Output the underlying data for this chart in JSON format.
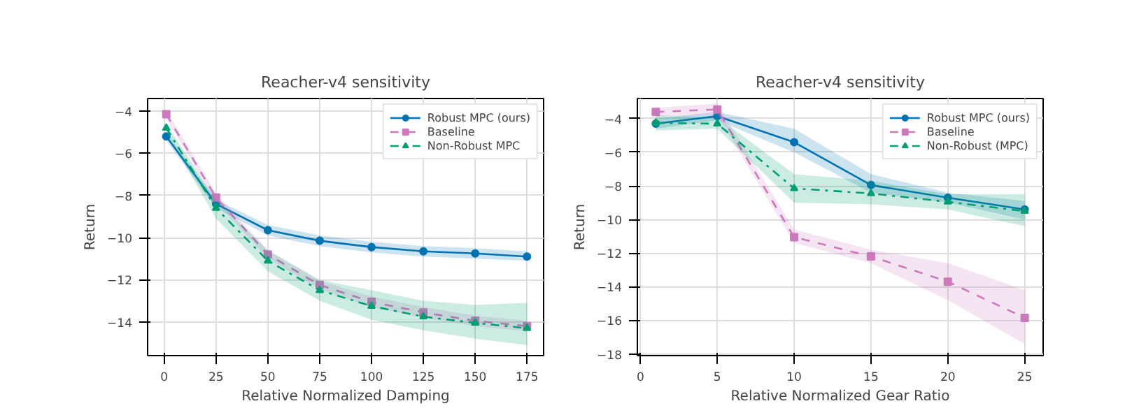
{
  "chart_data": [
    {
      "type": "line",
      "title": "Reacher-v4 sensitivity",
      "xlabel": "Relative Normalized Damping",
      "ylabel": "Return",
      "x": [
        1,
        25,
        50,
        75,
        100,
        125,
        150,
        175
      ],
      "xlim": [
        -8,
        183
      ],
      "ylim": [
        -15.6,
        -3.4
      ],
      "xticks": [
        0,
        25,
        50,
        75,
        100,
        125,
        150,
        175
      ],
      "yticks": [
        -14,
        -12,
        -10,
        -8,
        -6,
        -4
      ],
      "grid": true,
      "legend": "top right",
      "series": [
        {
          "name": "Robust MPC (ours)",
          "color": "#0173b2",
          "marker": "circle",
          "line_style": "solid",
          "values": [
            -5.2,
            -8.4,
            -9.65,
            -10.15,
            -10.45,
            -10.65,
            -10.75,
            -10.9
          ],
          "lower": [
            -5.4,
            -8.6,
            -9.9,
            -10.4,
            -10.7,
            -10.9,
            -11.0,
            -11.1
          ],
          "upper": [
            -5.0,
            -8.2,
            -9.4,
            -9.9,
            -10.2,
            -10.4,
            -10.5,
            -10.65
          ]
        },
        {
          "name": "Baseline",
          "color": "#cc78bc",
          "marker": "square",
          "line_style": "dashed",
          "values": [
            -4.15,
            -8.1,
            -10.8,
            -12.25,
            -13.05,
            -13.55,
            -13.95,
            -14.2
          ],
          "lower": [
            -4.35,
            -8.3,
            -11.0,
            -12.45,
            -13.3,
            -13.8,
            -14.2,
            -14.45
          ],
          "upper": [
            -3.95,
            -7.9,
            -10.6,
            -12.05,
            -12.8,
            -13.3,
            -13.7,
            -13.95
          ]
        },
        {
          "name": "Non-Robust MPC",
          "color": "#029e73",
          "marker": "triangle",
          "line_style": "dashdot",
          "values": [
            -4.8,
            -8.6,
            -11.1,
            -12.5,
            -13.25,
            -13.75,
            -14.05,
            -14.3
          ],
          "lower": [
            -5.0,
            -9.1,
            -11.6,
            -13.0,
            -13.9,
            -14.4,
            -14.8,
            -15.1
          ],
          "upper": [
            -4.6,
            -8.2,
            -10.6,
            -12.0,
            -12.5,
            -13.0,
            -13.2,
            -13.1
          ]
        }
      ]
    },
    {
      "type": "line",
      "title": "Reacher-v4 sensitivity",
      "xlabel": "Relative Normalized Gear Ratio",
      "ylabel": "Return",
      "x": [
        1,
        5,
        10,
        15,
        20,
        25
      ],
      "xlim": [
        -0.2,
        26.2
      ],
      "ylim": [
        -18.1,
        -2.8
      ],
      "xticks": [
        0,
        5,
        10,
        15,
        20,
        25
      ],
      "yticks": [
        -18,
        -16,
        -14,
        -12,
        -10,
        -8,
        -6,
        -4
      ],
      "grid": true,
      "legend": "top right",
      "series": [
        {
          "name": "Robust MPC (ours)",
          "color": "#0173b2",
          "marker": "circle",
          "line_style": "solid",
          "values": [
            -4.3,
            -3.85,
            -5.4,
            -7.95,
            -8.7,
            -9.4
          ],
          "lower": [
            -4.6,
            -4.1,
            -6.0,
            -8.4,
            -9.0,
            -10.0
          ],
          "upper": [
            -4.0,
            -3.6,
            -4.6,
            -7.3,
            -8.4,
            -8.9
          ]
        },
        {
          "name": "Baseline",
          "color": "#cc78bc",
          "marker": "square",
          "line_style": "dashed",
          "values": [
            -3.6,
            -3.45,
            -11.05,
            -12.2,
            -13.7,
            -15.85
          ],
          "lower": [
            -3.85,
            -3.8,
            -11.4,
            -12.6,
            -14.8,
            -17.4
          ],
          "upper": [
            -3.35,
            -3.1,
            -10.6,
            -11.8,
            -12.6,
            -14.2
          ]
        },
        {
          "name": "Non-Robust (MPC)",
          "color": "#029e73",
          "marker": "triangle",
          "line_style": "dashdot",
          "values": [
            -4.25,
            -4.3,
            -8.15,
            -8.45,
            -8.95,
            -9.5
          ],
          "lower": [
            -4.7,
            -4.6,
            -9.0,
            -9.1,
            -9.4,
            -10.4
          ],
          "upper": [
            -3.8,
            -3.9,
            -7.3,
            -7.7,
            -8.5,
            -8.5
          ]
        }
      ]
    }
  ]
}
